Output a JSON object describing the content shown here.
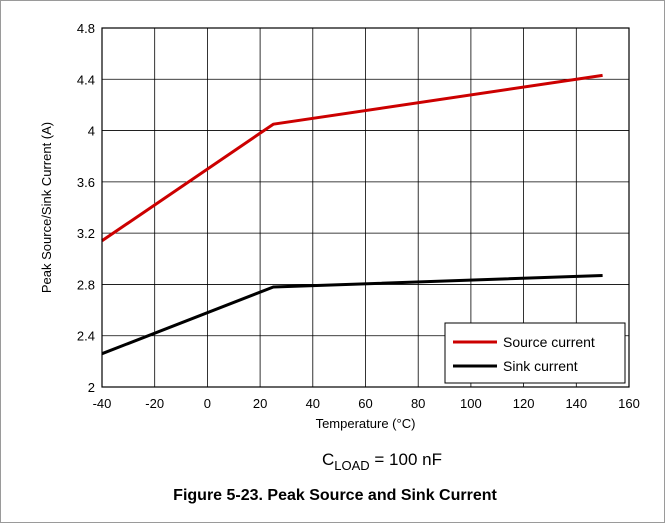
{
  "chart_data": {
    "type": "line",
    "title": "",
    "xlabel": "Temperature (°C)",
    "ylabel": "Peak Source/Sink Current (A)",
    "xlim": [
      -40,
      160
    ],
    "ylim": [
      2,
      4.8
    ],
    "x_ticks": [
      -40,
      -20,
      0,
      20,
      40,
      60,
      80,
      100,
      120,
      140,
      160
    ],
    "y_ticks": [
      2,
      2.4,
      2.8,
      3.2,
      3.6,
      4,
      4.4,
      4.8
    ],
    "x_tick_labels": [
      "-40",
      "-20",
      "0",
      "20",
      "40",
      "60",
      "80",
      "100",
      "120",
      "140",
      "160"
    ],
    "y_tick_labels": [
      "2",
      "2.4",
      "2.8",
      "3.2",
      "3.6",
      "4",
      "4.4",
      "4.8"
    ],
    "grid": true,
    "legend_position": "bottom-right",
    "series": [
      {
        "name": "Source current",
        "color": "#cc0000",
        "x": [
          -40,
          25,
          150
        ],
        "y": [
          3.14,
          4.05,
          4.43
        ]
      },
      {
        "name": "Sink current",
        "color": "#000000",
        "x": [
          -40,
          25,
          150
        ],
        "y": [
          2.26,
          2.78,
          2.87
        ]
      }
    ],
    "annotation": {
      "main": "C",
      "sub": "LOAD",
      "rest": " = 100 nF"
    }
  },
  "caption": "Figure 5-23. Peak Source and Sink Current"
}
